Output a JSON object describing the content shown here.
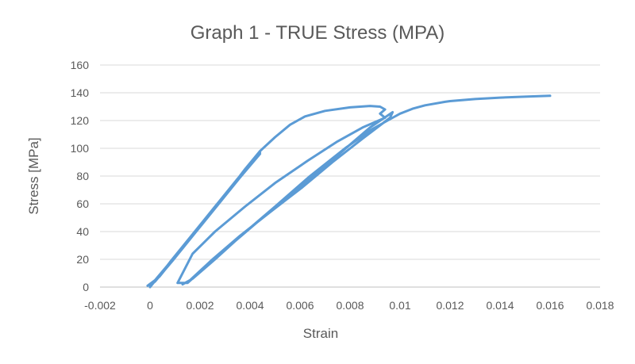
{
  "chart_data": {
    "type": "line",
    "title": "Graph 1 - TRUE Stress (MPA)",
    "xlabel": "Strain",
    "ylabel": "Stress [MPa]",
    "xlim": [
      -0.002,
      0.018
    ],
    "ylim": [
      0,
      160
    ],
    "x_ticks": [
      -0.002,
      0,
      0.002,
      0.004,
      0.006,
      0.008,
      0.01,
      0.012,
      0.014,
      0.016,
      0.018
    ],
    "x_tick_labels": [
      "-0.002",
      "0",
      "0.002",
      "0.004",
      "0.006",
      "0.008",
      "0.01",
      "0.012",
      "0.014",
      "0.016",
      "0.018"
    ],
    "y_ticks": [
      0,
      20,
      40,
      60,
      80,
      100,
      120,
      140,
      160
    ],
    "y_tick_labels": [
      "0",
      "20",
      "40",
      "60",
      "80",
      "100",
      "120",
      "140",
      "160"
    ],
    "grid": true,
    "legend": "none",
    "color": "#5b9bd5",
    "series": [
      {
        "x": [
          0,
          0.0009,
          0.0018,
          0.0027,
          0.0036,
          0.0044,
          0.0036,
          0.0027,
          0.0018,
          0.0009,
          0.0002,
          -0.0001,
          0.0002,
          0.001,
          0.0019,
          0.0028,
          0.0037,
          0.0044,
          0.0035,
          0.0026,
          0.0017,
          0.0008,
          0.0002,
          0,
          0.0004,
          0.0012,
          0.0021,
          0.003,
          0.0038,
          0.0044,
          0.005,
          0.0056,
          0.0062,
          0.007,
          0.008,
          0.0088,
          0.0092,
          0.0094,
          0.0092,
          0.0094,
          0.0085,
          0.0075,
          0.0063,
          0.005,
          0.0038,
          0.0026,
          0.0017,
          0.0011,
          0.0015,
          0.0022,
          0.0032,
          0.0045,
          0.006,
          0.0075,
          0.0088,
          0.0097,
          0.0096,
          0.0085,
          0.0073,
          0.0061,
          0.0048,
          0.0036,
          0.0025,
          0.0016,
          0.0013,
          0.0017,
          0.0026,
          0.0037,
          0.005,
          0.0064,
          0.0078,
          0.0089,
          0.0097,
          0.01,
          0.0105,
          0.011,
          0.0118,
          0.012,
          0.013,
          0.014,
          0.015,
          0.016
        ],
        "y": [
          0,
          20,
          40,
          60,
          80,
          96,
          79,
          59,
          39,
          19,
          4,
          1,
          5,
          22,
          42,
          62,
          82,
          97,
          78,
          58,
          38,
          18,
          4,
          1,
          8,
          26,
          46,
          66,
          85,
          98,
          108,
          117,
          123,
          127,
          129.5,
          130.5,
          130,
          128,
          125,
          122,
          115,
          105,
          91,
          75,
          58,
          40,
          24,
          3,
          3,
          14,
          30,
          50,
          72,
          95,
          115,
          126,
          122,
          107,
          90,
          72,
          54,
          37,
          20,
          5,
          2,
          6,
          20,
          38,
          58,
          80,
          100,
          114,
          122,
          125,
          128.5,
          131,
          133.5,
          134,
          135.5,
          136.5,
          137.2,
          137.8
        ]
      }
    ]
  }
}
